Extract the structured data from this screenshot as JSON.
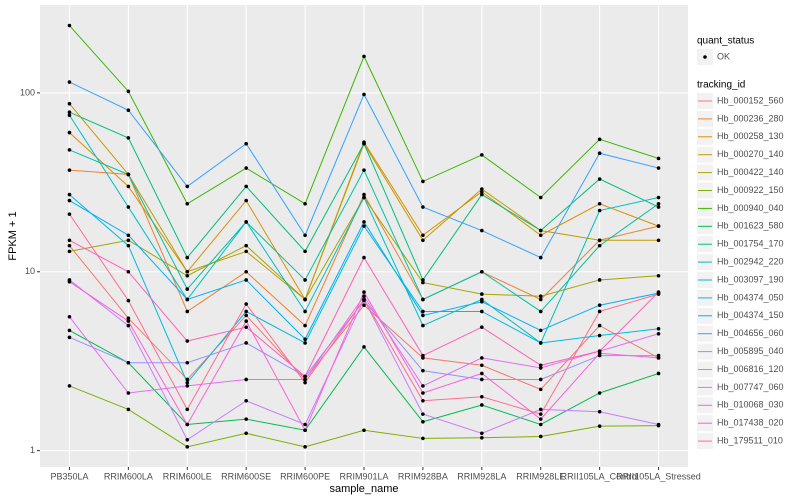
{
  "chart_data": {
    "type": "line",
    "log_y": true,
    "grid": true,
    "x_label": "sample_name",
    "y_label": "FPKM + 1",
    "point_legend_title": "quant_status",
    "point_legend_label": "OK",
    "point_color": "#000000",
    "legend_title": "tracking_id",
    "legend_position": "right",
    "categories": [
      "PB350LA",
      "RRIM600LA",
      "RRIM600LE",
      "RRIM600SE",
      "RRIM600PE",
      "RRIM901LA",
      "RRIM928BA",
      "RRIM928LA",
      "RRIM928LE",
      "RRII105LA_Control",
      "RRII105LA_Stressed"
    ],
    "ylim": [
      0.81,
      310
    ],
    "yticks": [
      1,
      10,
      100
    ],
    "series": [
      {
        "name": "Hb_000152_560",
        "color": "#F8766D",
        "values": [
          14,
          5.5,
          2.5,
          5.7,
          2.5,
          6.5,
          3.3,
          3,
          2.2,
          5,
          3.3
        ]
      },
      {
        "name": "Hb_000236_280",
        "color": "#EA8331",
        "values": [
          37,
          35,
          6,
          10,
          5,
          27,
          7,
          10,
          7,
          15,
          18
        ]
      },
      {
        "name": "Hb_000258_130",
        "color": "#D89000",
        "values": [
          60,
          30,
          10,
          25,
          7,
          53,
          16,
          28,
          16,
          24,
          18
        ]
      },
      {
        "name": "Hb_000270_140",
        "color": "#C09B00",
        "values": [
          87,
          35,
          10,
          13,
          7,
          52,
          15,
          29,
          17,
          15,
          15
        ]
      },
      {
        "name": "Hb_000422_140",
        "color": "#A3A500",
        "values": [
          13,
          15,
          9.5,
          14,
          7,
          26,
          8.7,
          7.5,
          7.3,
          9,
          9.5
        ]
      },
      {
        "name": "Hb_000922_150",
        "color": "#7CAE00",
        "values": [
          2.3,
          1.7,
          1.05,
          1.25,
          1.05,
          1.3,
          1.17,
          1.18,
          1.2,
          1.37,
          1.38
        ]
      },
      {
        "name": "Hb_000940_040",
        "color": "#39B600",
        "values": [
          238,
          102,
          24,
          38,
          24,
          160,
          32,
          45,
          26,
          55,
          43
        ]
      },
      {
        "name": "Hb_001623_580",
        "color": "#00BB4E",
        "values": [
          4.7,
          3.1,
          1.4,
          1.5,
          1.3,
          3.8,
          1.45,
          1.8,
          1.4,
          2.1,
          2.7
        ]
      },
      {
        "name": "Hb_001754_170",
        "color": "#00BF7D",
        "values": [
          78,
          56,
          12,
          30,
          13,
          52,
          9,
          27,
          17,
          33,
          23
        ]
      },
      {
        "name": "Hb_002942_220",
        "color": "#00C1A3",
        "values": [
          48,
          35,
          8,
          19,
          9,
          37,
          7,
          10,
          6,
          14,
          24
        ]
      },
      {
        "name": "Hb_003097_190",
        "color": "#00BFC4",
        "values": [
          75,
          23,
          7,
          19,
          6,
          26,
          5,
          7,
          4,
          22,
          26
        ]
      },
      {
        "name": "Hb_004374_050",
        "color": "#00BAE0",
        "values": [
          27,
          14,
          2.4,
          6,
          4,
          18,
          6,
          6,
          4,
          4.4,
          4.8
        ]
      },
      {
        "name": "Hb_004374_150",
        "color": "#00B0F6",
        "values": [
          25,
          16,
          7,
          9,
          4.2,
          19,
          5.7,
          6.8,
          4.7,
          6.5,
          7.6
        ]
      },
      {
        "name": "Hb_004656_060",
        "color": "#35A2FF",
        "values": [
          115,
          80,
          30,
          52,
          16,
          98,
          23,
          17,
          12,
          46,
          38
        ]
      },
      {
        "name": "Hb_005895_040",
        "color": "#9590FF",
        "values": [
          4.3,
          3.1,
          3.1,
          4,
          2.6,
          6.9,
          2.8,
          2.5,
          2.5,
          3.4,
          3.4
        ]
      },
      {
        "name": "Hb_006816_120",
        "color": "#C77CFF",
        "values": [
          9,
          5,
          1.15,
          1.9,
          1.4,
          7,
          1.6,
          1.25,
          1.7,
          1.65,
          1.4
        ]
      },
      {
        "name": "Hb_007747_060",
        "color": "#E76BF3",
        "values": [
          5.6,
          2.1,
          2.3,
          2.5,
          2.5,
          7.3,
          2.3,
          3.3,
          2.9,
          3.6,
          4.5
        ]
      },
      {
        "name": "Hb_010068_030",
        "color": "#FA62DB",
        "values": [
          8.8,
          5.3,
          1.4,
          5.3,
          1.3,
          7.7,
          2.1,
          2.7,
          1.5,
          3.5,
          3.3
        ]
      },
      {
        "name": "Hb_017438_020",
        "color": "#FF62BC",
        "values": [
          15,
          10,
          4.1,
          4.9,
          2.6,
          12,
          3.4,
          4.9,
          3,
          3.6,
          7.7
        ]
      },
      {
        "name": "Hb_179511_010",
        "color": "#FF6C91",
        "values": [
          21,
          6.9,
          1.7,
          6.6,
          2.4,
          7,
          1.9,
          2,
          1.6,
          6,
          7.5
        ]
      }
    ]
  }
}
